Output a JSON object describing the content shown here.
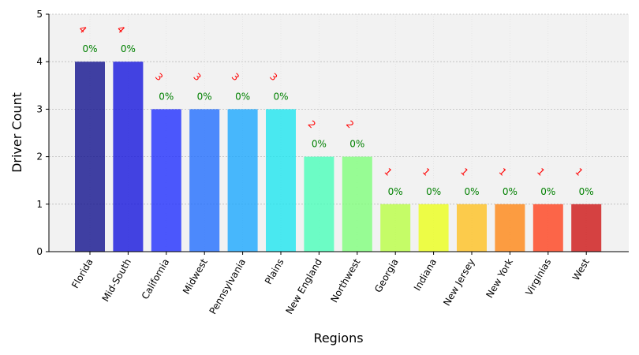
{
  "chart_data": {
    "type": "bar",
    "title": "",
    "xlabel": "Regions",
    "ylabel": "Driver Count",
    "ylim": [
      0,
      5
    ],
    "yticks": [
      "0",
      "1",
      "2",
      "3",
      "4",
      "5"
    ],
    "grid": true,
    "categories": [
      "Florida",
      "Mid-South",
      "California",
      "Midwest",
      "Pennsylvania",
      "Plains",
      "New England",
      "Northwest",
      "Georgia",
      "Indiana",
      "New Jersey",
      "New York",
      "Virginias",
      "West"
    ],
    "values": [
      4,
      4,
      3,
      3,
      3,
      3,
      2,
      2,
      1,
      1,
      1,
      1,
      1,
      1
    ],
    "count_labels": [
      "4",
      "4",
      "3",
      "3",
      "3",
      "3",
      "2",
      "2",
      "1",
      "1",
      "1",
      "1",
      "1",
      "1"
    ],
    "percent_labels": [
      "0%",
      "0%",
      "0%",
      "0%",
      "0%",
      "0%",
      "0%",
      "0%",
      "0%",
      "0%",
      "0%",
      "0%",
      "0%",
      "0%"
    ],
    "colors": [
      "#0d0d8c",
      "#1111dd",
      "#1c2cff",
      "#1e6cff",
      "#17a6ff",
      "#1ae6f0",
      "#46ffb8",
      "#7dff7a",
      "#b8ff40",
      "#ecff16",
      "#ffc01c",
      "#ff8410",
      "#ff3e18",
      "#cd1010"
    ],
    "count_label_color": "#ff0000",
    "percent_label_color": "#008000",
    "plot_background": "#f2f2f2"
  }
}
